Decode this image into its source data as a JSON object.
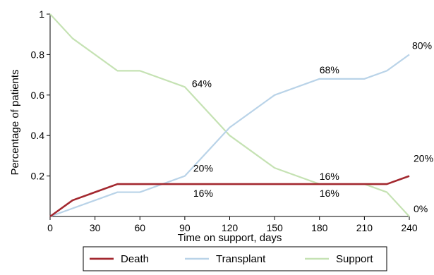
{
  "chart_data": {
    "type": "line",
    "title": "",
    "xlabel": "Time on support, days",
    "ylabel": "Percentage of patients",
    "xlim": [
      0,
      240
    ],
    "ylim": [
      0,
      1
    ],
    "x_ticks": [
      "0",
      "30",
      "60",
      "90",
      "120",
      "150",
      "180",
      "210",
      "240"
    ],
    "y_ticks": [
      "0.2",
      "0.4",
      "0.6",
      "0.8",
      "1"
    ],
    "grid": false,
    "legend_position": "bottom",
    "series": [
      {
        "name": "Death",
        "color": "#a3282f",
        "x": [
          0,
          15,
          45,
          60,
          90,
          120,
          150,
          180,
          210,
          225,
          240
        ],
        "y": [
          0,
          0.08,
          0.16,
          0.16,
          0.16,
          0.16,
          0.16,
          0.16,
          0.16,
          0.16,
          0.2
        ]
      },
      {
        "name": "Transplant",
        "color": "#b9d3e8",
        "x": [
          0,
          45,
          60,
          90,
          120,
          150,
          180,
          210,
          225,
          240
        ],
        "y": [
          0,
          0.12,
          0.12,
          0.2,
          0.44,
          0.6,
          0.68,
          0.68,
          0.72,
          0.8
        ]
      },
      {
        "name": "Support",
        "color": "#c5e2b3",
        "x": [
          0,
          15,
          45,
          60,
          90,
          120,
          150,
          180,
          210,
          225,
          240
        ],
        "y": [
          1.0,
          0.88,
          0.72,
          0.72,
          0.64,
          0.4,
          0.24,
          0.16,
          0.16,
          0.12,
          0.0
        ]
      }
    ],
    "annotations": [
      {
        "text": "64%",
        "x": 90,
        "y": 0.64
      },
      {
        "text": "68%",
        "x": 180,
        "y": 0.68
      },
      {
        "text": "80%",
        "x": 240,
        "y": 0.8
      },
      {
        "text": "20%",
        "x": 90,
        "y": 0.2
      },
      {
        "text": "16%",
        "x": 90,
        "y": 0.16
      },
      {
        "text": "16%",
        "x": 180,
        "y": 0.16
      },
      {
        "text": "16%",
        "x": 180,
        "y": 0.16
      },
      {
        "text": "20%",
        "x": 240,
        "y": 0.2
      },
      {
        "text": "0%",
        "x": 240,
        "y": 0.0
      }
    ]
  }
}
